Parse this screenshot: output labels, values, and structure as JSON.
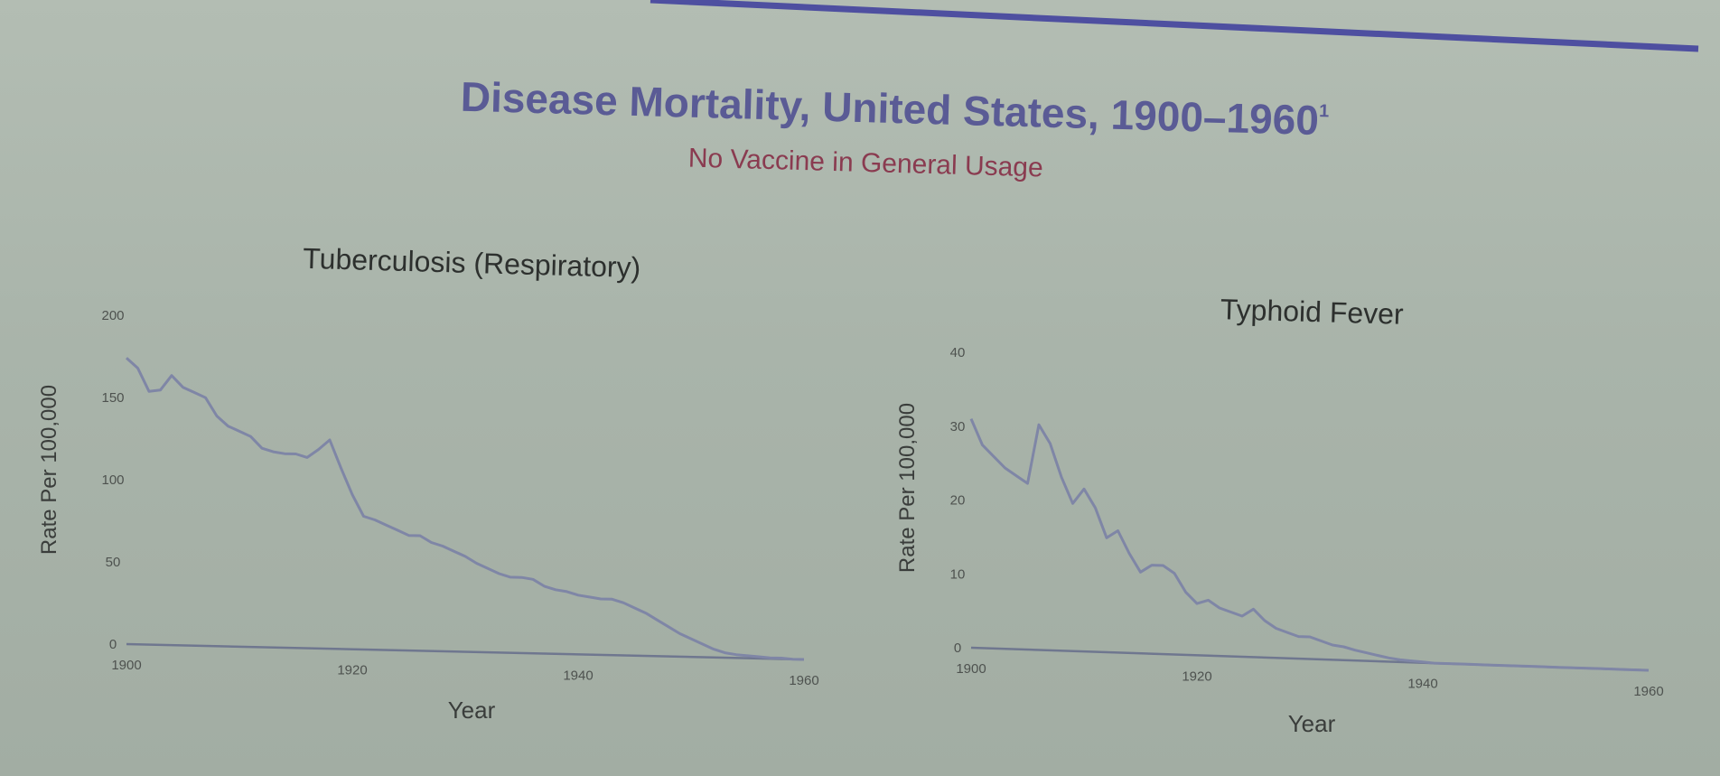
{
  "slide": {
    "title": "Disease Mortality, United States, 1900–1960",
    "footnote_mark": "1",
    "subtitle": "No Vaccine in General Usage",
    "colors": {
      "title": "#5a5b95",
      "subtitle": "#8a3b50",
      "line": "#7f86a6",
      "rule": "#4e4fa0"
    }
  },
  "chart_data": [
    {
      "type": "line",
      "title": "Tuberculosis (Respiratory)",
      "xlabel": "Year",
      "ylabel": "Rate Per 100,000",
      "xlim": [
        1900,
        1960
      ],
      "ylim": [
        0,
        200
      ],
      "xticks": [
        "1900",
        "1920",
        "1940",
        "1960"
      ],
      "yticks": [
        "0",
        "50",
        "100",
        "150",
        "200"
      ],
      "grid": false,
      "series": [
        {
          "x": [
            1900,
            1901,
            1902,
            1903,
            1904,
            1905,
            1906,
            1907,
            1908,
            1909,
            1910,
            1911,
            1912,
            1913,
            1914,
            1915,
            1916,
            1917,
            1918,
            1919,
            1920,
            1921,
            1922,
            1923,
            1924,
            1925,
            1926,
            1927,
            1928,
            1929,
            1930,
            1931,
            1932,
            1933,
            1934,
            1935,
            1936,
            1937,
            1938,
            1939,
            1940,
            1941,
            1942,
            1943,
            1944,
            1945,
            1946,
            1947,
            1948,
            1949,
            1950,
            1951,
            1952,
            1953,
            1954,
            1955,
            1956,
            1957,
            1958,
            1959,
            1960
          ],
          "y": [
            174,
            168,
            154,
            155,
            164,
            157,
            154,
            151,
            140,
            134,
            131,
            128,
            121,
            119,
            118,
            118,
            116,
            121,
            127,
            110,
            94,
            81,
            79,
            76,
            73,
            70,
            70,
            66,
            64,
            61,
            58,
            54,
            51,
            48,
            46,
            46,
            45,
            41,
            39,
            38,
            36,
            35,
            34,
            34,
            32,
            29,
            26,
            22,
            18,
            14,
            11,
            8,
            5,
            3,
            2,
            1.5,
            1,
            0.5,
            0.5,
            0,
            0
          ]
        }
      ]
    },
    {
      "type": "line",
      "title": "Typhoid Fever",
      "xlabel": "Year",
      "ylabel": "Rate Per 100,000",
      "xlim": [
        1900,
        1960
      ],
      "ylim": [
        0,
        40
      ],
      "xticks": [
        "1900",
        "1920",
        "1940",
        "1960"
      ],
      "yticks": [
        "0",
        "10",
        "20",
        "30",
        "40"
      ],
      "grid": false,
      "series": [
        {
          "x": [
            1900,
            1901,
            1902,
            1903,
            1904,
            1905,
            1906,
            1907,
            1908,
            1909,
            1910,
            1911,
            1912,
            1913,
            1914,
            1915,
            1916,
            1917,
            1918,
            1919,
            1920,
            1921,
            1922,
            1923,
            1924,
            1925,
            1926,
            1927,
            1928,
            1929,
            1930,
            1931,
            1932,
            1933,
            1934,
            1935,
            1936,
            1937,
            1938,
            1939,
            1940,
            1941,
            1942,
            1943,
            1944,
            1945,
            1946,
            1947,
            1948,
            1949,
            1950,
            1951,
            1952,
            1953,
            1954,
            1955,
            1956,
            1957,
            1958,
            1959,
            1960
          ],
          "y": [
            31,
            27.5,
            26,
            24.5,
            23.5,
            22.5,
            30.5,
            28,
            23.5,
            20,
            22,
            19.5,
            15.5,
            16.5,
            13.5,
            11,
            12,
            12,
            11,
            8.5,
            7,
            7.5,
            6.5,
            6,
            5.5,
            6.5,
            5,
            4,
            3.5,
            3,
            3,
            2.5,
            2,
            1.8,
            1.4,
            1.1,
            0.8,
            0.5,
            0.3,
            0.2,
            0.1,
            0,
            0,
            0,
            0,
            0,
            0,
            0,
            0,
            0,
            0,
            0,
            0,
            0,
            0,
            0,
            0,
            0,
            0,
            0,
            0
          ]
        }
      ]
    }
  ]
}
